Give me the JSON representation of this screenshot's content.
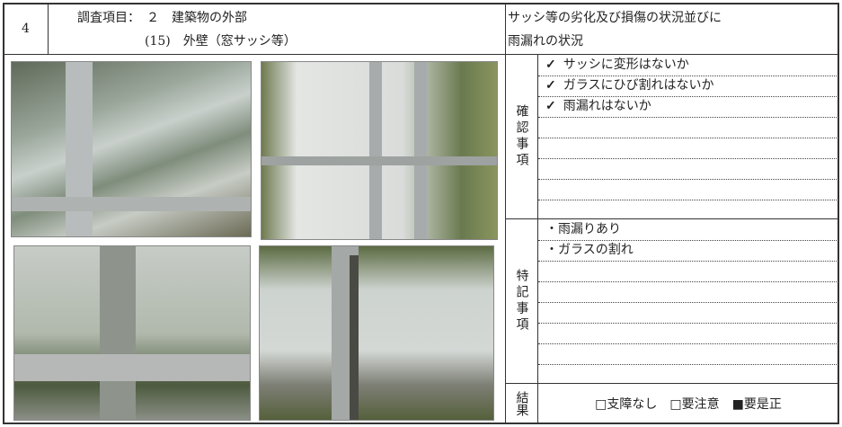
{
  "header": {
    "number": "4",
    "item": "調査項目：　２　建築物の外部",
    "sub_item": "(15)　外壁（窓サッシ等）",
    "description": [
      "サッシ等の劣化及び損傷の状況並びに",
      "雨漏れの状況"
    ]
  },
  "check": {
    "label": "確認事項",
    "items": [
      {
        "mark": "✓",
        "text": "サッシに変形はないか"
      },
      {
        "mark": "✓",
        "text": "ガラスにひび割れはないか"
      },
      {
        "mark": "✓",
        "text": "雨漏れはないか"
      }
    ]
  },
  "notes": {
    "label": "特記事項",
    "items": [
      "・雨漏りあり",
      "・ガラスの割れ"
    ]
  },
  "result": {
    "label": "結果",
    "options": [
      "□支障なし",
      "□要注意",
      "■要是正"
    ]
  }
}
